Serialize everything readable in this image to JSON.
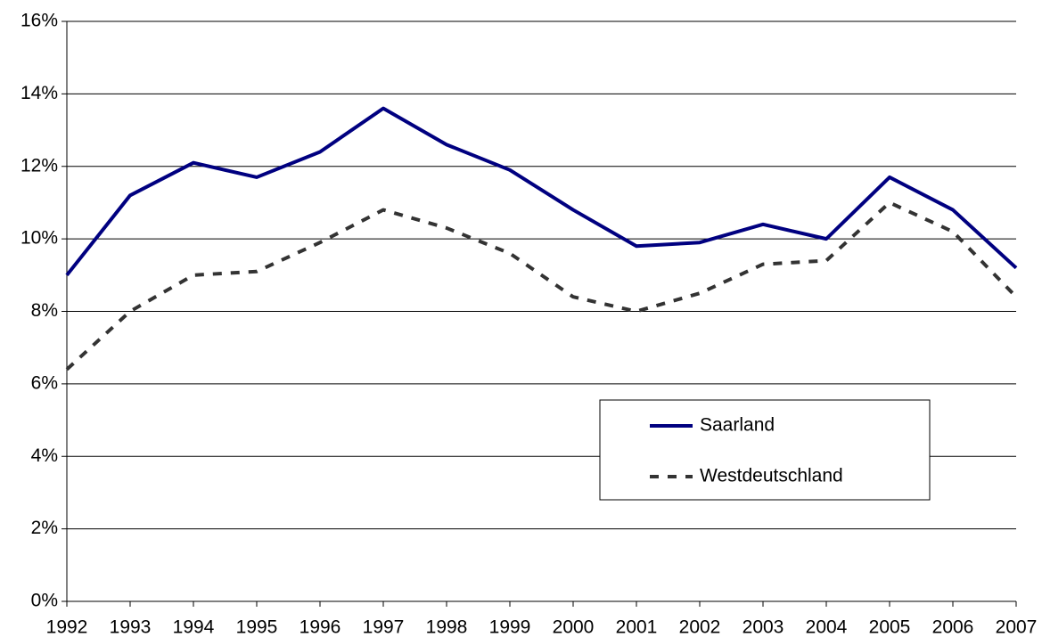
{
  "chart_data": {
    "type": "line",
    "x": [
      1992,
      1993,
      1994,
      1995,
      1996,
      1997,
      1998,
      1999,
      2000,
      2001,
      2002,
      2003,
      2004,
      2005,
      2006,
      2007
    ],
    "xlim": [
      1992,
      2007
    ],
    "xticks": [
      1992,
      1993,
      1994,
      1995,
      1996,
      1997,
      1998,
      1999,
      2000,
      2001,
      2002,
      2003,
      2004,
      2005,
      2006,
      2007
    ],
    "ylim": [
      0,
      16
    ],
    "yticks": [
      {
        "value": 0,
        "label": "0%"
      },
      {
        "value": 2,
        "label": "2%"
      },
      {
        "value": 4,
        "label": "4%"
      },
      {
        "value": 6,
        "label": "6%"
      },
      {
        "value": 8,
        "label": "8%"
      },
      {
        "value": 10,
        "label": "10%"
      },
      {
        "value": 12,
        "label": "12%"
      },
      {
        "value": 14,
        "label": "14%"
      },
      {
        "value": 16,
        "label": "16%"
      }
    ],
    "grid": true,
    "legend": "lower right",
    "series": [
      {
        "name": "Saarland",
        "color": "#000080",
        "style": "solid",
        "values": [
          9.0,
          11.2,
          12.1,
          11.7,
          12.4,
          13.6,
          12.6,
          11.9,
          10.8,
          9.8,
          9.9,
          10.4,
          10.0,
          11.7,
          10.8,
          9.2
        ]
      },
      {
        "name": "Westdeutschland",
        "color": "#333333",
        "style": "dashed",
        "values": [
          6.4,
          8.0,
          9.0,
          9.1,
          9.9,
          10.8,
          10.3,
          9.6,
          8.4,
          8.0,
          8.5,
          9.3,
          9.4,
          11.0,
          10.2,
          8.4
        ]
      }
    ]
  }
}
